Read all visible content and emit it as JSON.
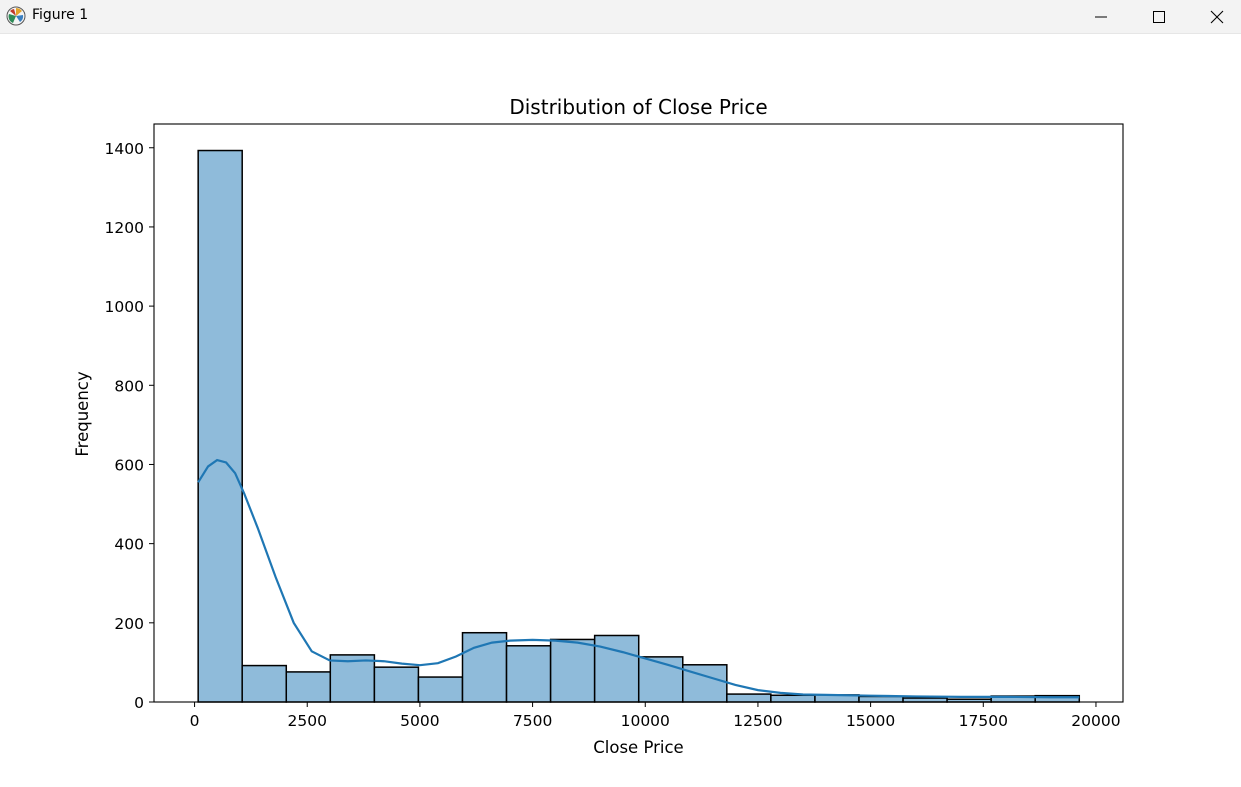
{
  "window": {
    "title": "Figure 1",
    "icons": {
      "app": "matplotlib-icon",
      "minimize": "minimize-icon",
      "maximize": "maximize-icon",
      "close": "close-icon"
    }
  },
  "chart_data": {
    "type": "bar",
    "subtype": "histogram-with-kde",
    "title": "Distribution of Close Price",
    "xlabel": "Close Price",
    "ylabel": "Frequency",
    "xlim": [
      -900,
      20600
    ],
    "ylim": [
      0,
      1460
    ],
    "xticks": [
      0,
      2500,
      5000,
      7500,
      10000,
      12500,
      15000,
      17500,
      20000
    ],
    "yticks": [
      0,
      200,
      400,
      600,
      800,
      1000,
      1200,
      1400
    ],
    "grid": false,
    "legend": "none",
    "bar_color": "#8fbbda",
    "edge_color": "#000000",
    "kde_color": "#1f77b4",
    "bins": [
      {
        "start": 80,
        "end": 1057,
        "count": 1393
      },
      {
        "start": 1057,
        "end": 2035,
        "count": 92
      },
      {
        "start": 2035,
        "end": 3012,
        "count": 76
      },
      {
        "start": 3012,
        "end": 3990,
        "count": 119
      },
      {
        "start": 3990,
        "end": 4967,
        "count": 88
      },
      {
        "start": 4967,
        "end": 5945,
        "count": 63
      },
      {
        "start": 5945,
        "end": 6922,
        "count": 175
      },
      {
        "start": 6922,
        "end": 7900,
        "count": 142
      },
      {
        "start": 7900,
        "end": 8877,
        "count": 158
      },
      {
        "start": 8877,
        "end": 9855,
        "count": 168
      },
      {
        "start": 9855,
        "end": 10832,
        "count": 114
      },
      {
        "start": 10832,
        "end": 11810,
        "count": 94
      },
      {
        "start": 11810,
        "end": 12787,
        "count": 20
      },
      {
        "start": 12787,
        "end": 13765,
        "count": 17
      },
      {
        "start": 13765,
        "end": 14742,
        "count": 18
      },
      {
        "start": 14742,
        "end": 15720,
        "count": 14
      },
      {
        "start": 15720,
        "end": 16697,
        "count": 10
      },
      {
        "start": 16697,
        "end": 17675,
        "count": 7
      },
      {
        "start": 17675,
        "end": 18652,
        "count": 15
      },
      {
        "start": 18652,
        "end": 19630,
        "count": 16
      }
    ],
    "kde": {
      "x": [
        80,
        300,
        500,
        700,
        900,
        1100,
        1400,
        1800,
        2200,
        2600,
        3000,
        3400,
        3800,
        4200,
        4600,
        5000,
        5400,
        5800,
        6200,
        6600,
        7000,
        7500,
        8000,
        8500,
        9000,
        9500,
        10000,
        10500,
        11000,
        11500,
        12000,
        12500,
        13000,
        13500,
        14000,
        15000,
        16000,
        17000,
        18000,
        19000,
        19630
      ],
      "y": [
        555,
        595,
        611,
        605,
        578,
        527,
        440,
        315,
        200,
        128,
        105,
        103,
        105,
        103,
        97,
        93,
        98,
        115,
        137,
        150,
        155,
        157,
        155,
        150,
        140,
        126,
        110,
        94,
        77,
        60,
        43,
        30,
        23,
        19,
        18,
        16,
        14,
        13,
        13,
        12,
        12
      ]
    }
  }
}
